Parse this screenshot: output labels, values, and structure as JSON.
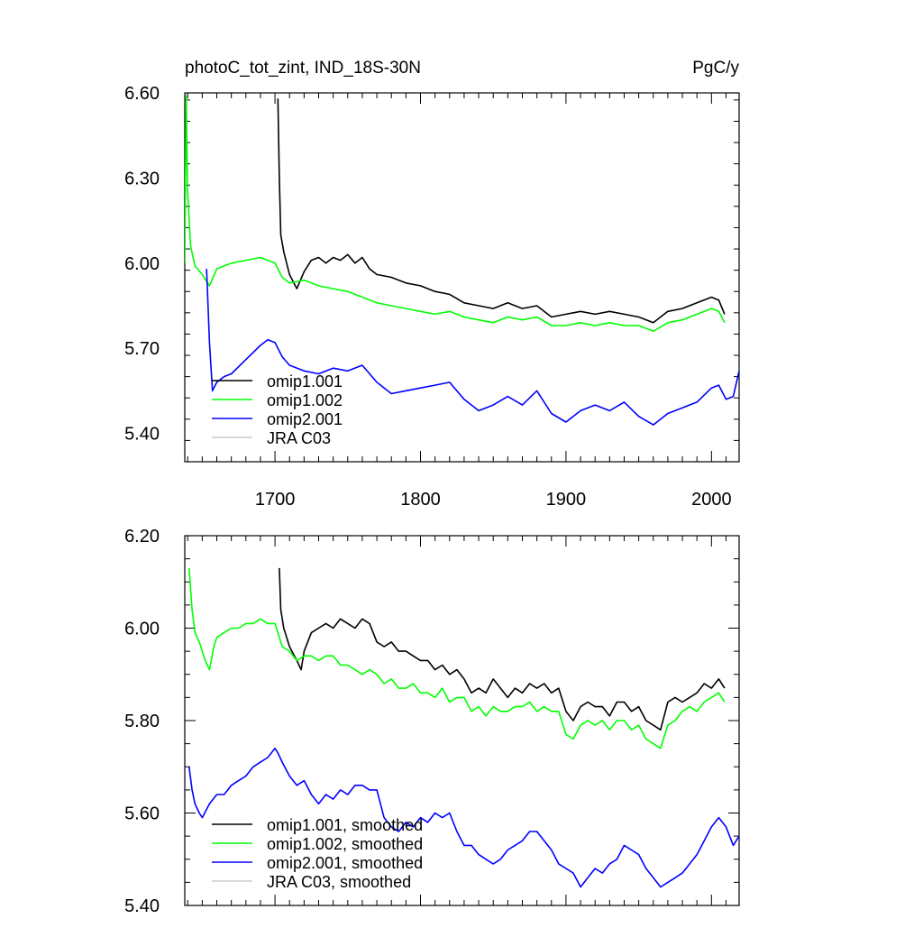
{
  "chart_data": [
    {
      "type": "line",
      "title": "photoC_tot_zint, IND_18S-30N",
      "units": "PgC/y",
      "ylim": [
        5.3,
        6.6
      ],
      "xlim": [
        1638,
        2019
      ],
      "y_ticks": [
        5.4,
        5.7,
        6.0,
        6.3,
        6.6
      ],
      "y_tick_labels": [
        "5.40",
        "5.70",
        "6.00",
        "6.30",
        "6.60"
      ],
      "x_ticks": [
        1700,
        1800,
        1900,
        2000
      ],
      "x_tick_labels": [
        "1700",
        "1800",
        "1900",
        "2000"
      ],
      "legend_position": "bottom-left",
      "legend": [
        "omip1.001",
        "omip1.002",
        "omip2.001",
        "JRA C03"
      ],
      "series": [
        {
          "name": "omip1.001",
          "color": "#000000",
          "x": [
            1702,
            1703,
            1704,
            1706,
            1710,
            1715,
            1720,
            1725,
            1730,
            1735,
            1740,
            1745,
            1750,
            1755,
            1760,
            1765,
            1770,
            1780,
            1790,
            1800,
            1810,
            1820,
            1830,
            1840,
            1850,
            1860,
            1870,
            1880,
            1890,
            1900,
            1910,
            1920,
            1930,
            1940,
            1950,
            1960,
            1970,
            1980,
            1990,
            2000,
            2005,
            2009
          ],
          "values": [
            6.58,
            6.3,
            6.1,
            6.04,
            5.96,
            5.91,
            5.97,
            6.01,
            6.02,
            6.0,
            6.02,
            6.01,
            6.03,
            6.0,
            6.02,
            5.98,
            5.96,
            5.95,
            5.93,
            5.92,
            5.9,
            5.89,
            5.86,
            5.85,
            5.84,
            5.86,
            5.84,
            5.85,
            5.81,
            5.82,
            5.83,
            5.82,
            5.83,
            5.82,
            5.81,
            5.79,
            5.83,
            5.84,
            5.86,
            5.88,
            5.87,
            5.82
          ]
        },
        {
          "name": "omip1.002",
          "color": "#00ff00",
          "x": [
            1638,
            1639,
            1640,
            1642,
            1645,
            1650,
            1655,
            1660,
            1665,
            1670,
            1680,
            1690,
            1700,
            1705,
            1710,
            1720,
            1730,
            1740,
            1750,
            1760,
            1770,
            1780,
            1790,
            1800,
            1810,
            1820,
            1830,
            1840,
            1850,
            1860,
            1870,
            1880,
            1890,
            1900,
            1910,
            1920,
            1930,
            1940,
            1950,
            1960,
            1970,
            1980,
            1990,
            2000,
            2005,
            2009
          ],
          "values": [
            6.0,
            6.59,
            6.25,
            6.06,
            5.99,
            5.96,
            5.92,
            5.98,
            5.99,
            6.0,
            6.01,
            6.02,
            6.0,
            5.95,
            5.93,
            5.94,
            5.92,
            5.91,
            5.9,
            5.88,
            5.86,
            5.85,
            5.84,
            5.83,
            5.82,
            5.83,
            5.81,
            5.8,
            5.79,
            5.81,
            5.8,
            5.81,
            5.78,
            5.78,
            5.79,
            5.78,
            5.79,
            5.78,
            5.78,
            5.76,
            5.79,
            5.8,
            5.82,
            5.84,
            5.83,
            5.79
          ]
        },
        {
          "name": "omip2.001",
          "color": "#0000ff",
          "x": [
            1653,
            1655,
            1657,
            1660,
            1665,
            1670,
            1680,
            1690,
            1695,
            1700,
            1705,
            1710,
            1720,
            1730,
            1740,
            1750,
            1760,
            1770,
            1780,
            1790,
            1800,
            1810,
            1820,
            1830,
            1840,
            1850,
            1860,
            1870,
            1880,
            1890,
            1900,
            1910,
            1920,
            1930,
            1940,
            1950,
            1960,
            1970,
            1980,
            1990,
            2000,
            2005,
            2010,
            2015,
            2019
          ],
          "values": [
            5.98,
            5.72,
            5.55,
            5.58,
            5.6,
            5.61,
            5.66,
            5.71,
            5.73,
            5.72,
            5.67,
            5.64,
            5.62,
            5.61,
            5.63,
            5.62,
            5.64,
            5.58,
            5.54,
            5.55,
            5.56,
            5.57,
            5.58,
            5.52,
            5.48,
            5.5,
            5.53,
            5.5,
            5.55,
            5.47,
            5.44,
            5.48,
            5.5,
            5.48,
            5.51,
            5.46,
            5.43,
            5.47,
            5.49,
            5.51,
            5.56,
            5.57,
            5.52,
            5.53,
            5.62
          ]
        },
        {
          "name": "JRA C03",
          "color": "#cccccc",
          "x": [],
          "values": []
        }
      ]
    },
    {
      "type": "line",
      "ylim": [
        5.4,
        6.2
      ],
      "xlim": [
        1638,
        2019
      ],
      "y_ticks": [
        5.4,
        5.6,
        5.8,
        6.0,
        6.2
      ],
      "y_tick_labels": [
        "5.40",
        "5.60",
        "5.80",
        "6.00",
        "6.20"
      ],
      "x_ticks": [
        1700,
        1800,
        1900,
        2000
      ],
      "x_tick_labels": [],
      "legend_position": "bottom-left",
      "legend": [
        "omip1.001, smoothed",
        "omip1.002, smoothed",
        "omip2.001, smoothed",
        "JRA C03, smoothed"
      ],
      "series": [
        {
          "name": "omip1.001, smoothed",
          "color": "#000000",
          "x": [
            1703,
            1704,
            1706,
            1710,
            1715,
            1718,
            1720,
            1725,
            1730,
            1735,
            1740,
            1745,
            1750,
            1755,
            1760,
            1765,
            1770,
            1775,
            1780,
            1785,
            1790,
            1795,
            1800,
            1805,
            1810,
            1815,
            1820,
            1825,
            1830,
            1835,
            1840,
            1845,
            1850,
            1855,
            1860,
            1865,
            1870,
            1875,
            1880,
            1885,
            1890,
            1895,
            1900,
            1905,
            1910,
            1915,
            1920,
            1925,
            1930,
            1935,
            1940,
            1945,
            1950,
            1955,
            1960,
            1965,
            1970,
            1975,
            1980,
            1985,
            1990,
            1995,
            2000,
            2005,
            2009
          ],
          "values": [
            6.13,
            6.04,
            6.0,
            5.96,
            5.93,
            5.91,
            5.95,
            5.99,
            6.0,
            6.01,
            6.0,
            6.02,
            6.01,
            6.0,
            6.02,
            6.01,
            5.97,
            5.96,
            5.97,
            5.95,
            5.95,
            5.94,
            5.93,
            5.93,
            5.91,
            5.92,
            5.9,
            5.91,
            5.89,
            5.86,
            5.87,
            5.86,
            5.89,
            5.87,
            5.85,
            5.87,
            5.86,
            5.88,
            5.87,
            5.88,
            5.86,
            5.87,
            5.82,
            5.8,
            5.83,
            5.84,
            5.83,
            5.83,
            5.81,
            5.84,
            5.84,
            5.82,
            5.83,
            5.8,
            5.79,
            5.78,
            5.84,
            5.85,
            5.84,
            5.85,
            5.86,
            5.88,
            5.87,
            5.89,
            5.87
          ]
        },
        {
          "name": "omip1.002, smoothed",
          "color": "#00ff00",
          "x": [
            1641,
            1643,
            1645,
            1648,
            1650,
            1652,
            1655,
            1658,
            1660,
            1665,
            1670,
            1675,
            1680,
            1685,
            1690,
            1695,
            1700,
            1705,
            1710,
            1715,
            1720,
            1725,
            1730,
            1735,
            1740,
            1745,
            1750,
            1755,
            1760,
            1765,
            1770,
            1775,
            1780,
            1785,
            1790,
            1795,
            1800,
            1805,
            1810,
            1815,
            1820,
            1825,
            1830,
            1835,
            1840,
            1845,
            1850,
            1855,
            1860,
            1865,
            1870,
            1875,
            1880,
            1885,
            1890,
            1895,
            1900,
            1905,
            1910,
            1915,
            1920,
            1925,
            1930,
            1935,
            1940,
            1945,
            1950,
            1955,
            1960,
            1965,
            1970,
            1975,
            1980,
            1985,
            1990,
            1995,
            2000,
            2005,
            2009
          ],
          "values": [
            6.13,
            6.04,
            5.99,
            5.97,
            5.95,
            5.93,
            5.91,
            5.96,
            5.98,
            5.99,
            6.0,
            6.0,
            6.01,
            6.01,
            6.02,
            6.01,
            6.01,
            5.96,
            5.95,
            5.93,
            5.94,
            5.94,
            5.93,
            5.94,
            5.94,
            5.92,
            5.92,
            5.91,
            5.9,
            5.91,
            5.9,
            5.88,
            5.89,
            5.87,
            5.87,
            5.88,
            5.86,
            5.86,
            5.85,
            5.87,
            5.84,
            5.85,
            5.85,
            5.82,
            5.83,
            5.81,
            5.83,
            5.82,
            5.82,
            5.83,
            5.83,
            5.84,
            5.82,
            5.83,
            5.82,
            5.82,
            5.77,
            5.76,
            5.79,
            5.8,
            5.79,
            5.8,
            5.78,
            5.8,
            5.8,
            5.78,
            5.79,
            5.76,
            5.75,
            5.74,
            5.79,
            5.8,
            5.82,
            5.83,
            5.82,
            5.84,
            5.85,
            5.86,
            5.84
          ]
        },
        {
          "name": "omip2.001, smoothed",
          "color": "#0000ff",
          "x": [
            1641,
            1643,
            1645,
            1648,
            1650,
            1655,
            1660,
            1665,
            1670,
            1675,
            1680,
            1685,
            1690,
            1695,
            1700,
            1702,
            1705,
            1710,
            1715,
            1720,
            1725,
            1730,
            1735,
            1740,
            1745,
            1750,
            1755,
            1760,
            1765,
            1770,
            1775,
            1780,
            1785,
            1790,
            1795,
            1800,
            1805,
            1810,
            1815,
            1820,
            1825,
            1830,
            1835,
            1840,
            1845,
            1850,
            1855,
            1860,
            1865,
            1870,
            1875,
            1880,
            1885,
            1890,
            1895,
            1900,
            1905,
            1910,
            1915,
            1920,
            1925,
            1930,
            1935,
            1940,
            1945,
            1950,
            1955,
            1960,
            1965,
            1970,
            1975,
            1980,
            1985,
            1990,
            1995,
            2000,
            2005,
            2010,
            2015,
            2019
          ],
          "values": [
            5.7,
            5.65,
            5.62,
            5.6,
            5.59,
            5.62,
            5.64,
            5.64,
            5.66,
            5.67,
            5.68,
            5.7,
            5.71,
            5.72,
            5.74,
            5.73,
            5.71,
            5.68,
            5.66,
            5.67,
            5.64,
            5.62,
            5.64,
            5.63,
            5.65,
            5.64,
            5.66,
            5.66,
            5.65,
            5.65,
            5.59,
            5.57,
            5.56,
            5.58,
            5.57,
            5.59,
            5.58,
            5.6,
            5.59,
            5.6,
            5.56,
            5.53,
            5.53,
            5.51,
            5.5,
            5.49,
            5.5,
            5.52,
            5.53,
            5.54,
            5.56,
            5.56,
            5.54,
            5.52,
            5.49,
            5.48,
            5.47,
            5.44,
            5.46,
            5.48,
            5.47,
            5.49,
            5.5,
            5.53,
            5.52,
            5.51,
            5.48,
            5.46,
            5.44,
            5.45,
            5.46,
            5.47,
            5.49,
            5.51,
            5.54,
            5.57,
            5.59,
            5.57,
            5.53,
            5.55
          ]
        },
        {
          "name": "JRA C03, smoothed",
          "color": "#cccccc",
          "x": [],
          "values": []
        }
      ]
    }
  ]
}
